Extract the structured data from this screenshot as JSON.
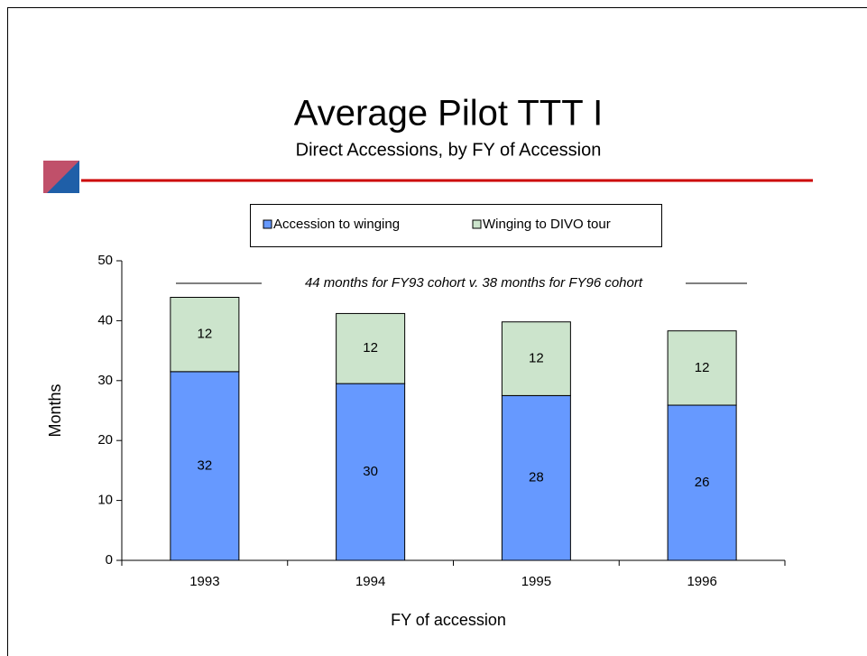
{
  "chart_data": {
    "type": "stacked_bar",
    "title": "Average Pilot TTT I",
    "subtitle": "Direct Accessions, by FY of Accession",
    "annotation": "44 months for FY93 cohort v. 38 months for FY96 cohort",
    "x_label": "FY of accession",
    "y_label": "Months",
    "categories": [
      "1993",
      "1994",
      "1995",
      "1996"
    ],
    "series": [
      {
        "name": "Accession to winging",
        "color": "#6699ff",
        "values": [
          31.5,
          29.5,
          27.5,
          25.9
        ],
        "value_labels": [
          "32",
          "30",
          "28",
          "26"
        ]
      },
      {
        "name": "Winging to DIVO tour",
        "color": "#cce4cc",
        "values": [
          12.4,
          11.7,
          12.3,
          12.4
        ],
        "value_labels": [
          "12",
          "12",
          "12",
          "12"
        ]
      }
    ],
    "ylim": [
      0,
      50
    ],
    "yticks": [
      0,
      10,
      20,
      30,
      40,
      50
    ],
    "legend": "top"
  }
}
